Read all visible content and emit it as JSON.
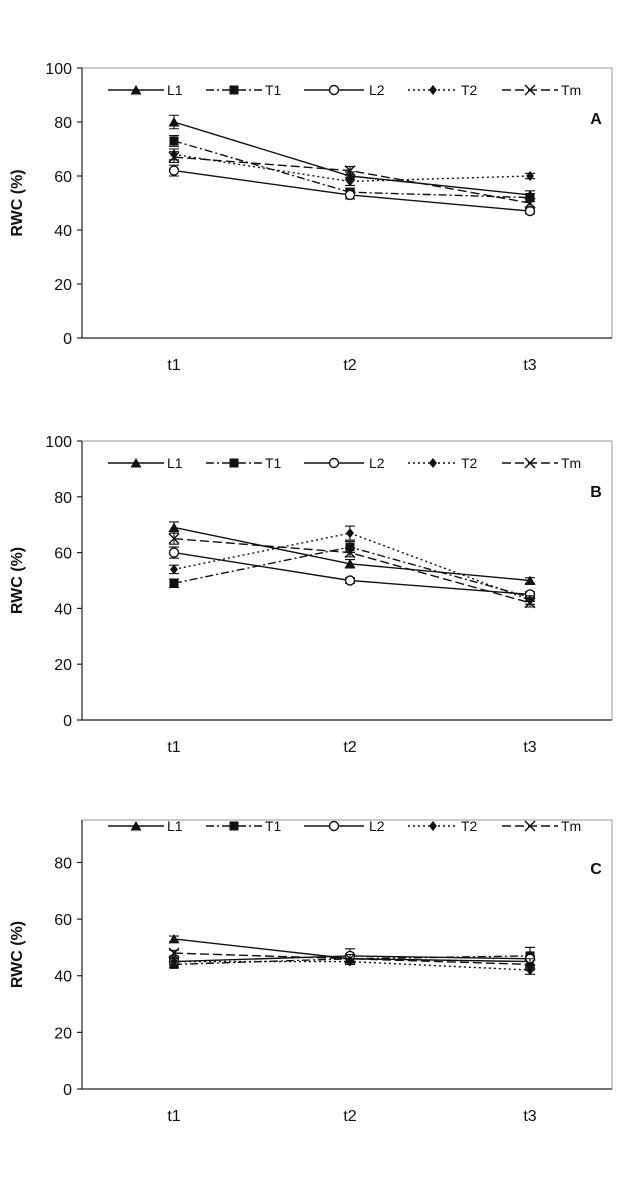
{
  "chart_data": [
    {
      "type": "line",
      "panel_label": "A",
      "ylabel": "RWC (%)",
      "ylim": [
        0,
        100
      ],
      "yticks": [
        0,
        20,
        40,
        60,
        80,
        100
      ],
      "categories": [
        "t1",
        "t2",
        "t3"
      ],
      "legend_position": "top",
      "series": [
        {
          "name": "L1",
          "marker": "triangle",
          "line": "solid",
          "values": [
            80,
            60,
            53
          ],
          "error": [
            2.5,
            1.5,
            1.5
          ]
        },
        {
          "name": "T1",
          "marker": "square",
          "line": "dashdot",
          "values": [
            73,
            54,
            52
          ],
          "error": [
            2,
            1.5,
            1.5
          ]
        },
        {
          "name": "L2",
          "marker": "circle",
          "line": "solid",
          "values": [
            62,
            53,
            47
          ],
          "error": [
            2,
            1.5,
            1
          ]
        },
        {
          "name": "T2",
          "marker": "diamond",
          "line": "dotted",
          "values": [
            68,
            58,
            60
          ],
          "error": [
            2,
            1.5,
            1
          ]
        },
        {
          "name": "Tm",
          "marker": "x",
          "line": "dashed",
          "values": [
            67,
            62,
            50
          ],
          "error": [
            2,
            1.5,
            1.5
          ]
        }
      ]
    },
    {
      "type": "line",
      "panel_label": "B",
      "ylabel": "RWC (%)",
      "ylim": [
        0,
        100
      ],
      "yticks": [
        0,
        20,
        40,
        60,
        80,
        100
      ],
      "categories": [
        "t1",
        "t2",
        "t3"
      ],
      "legend_position": "top",
      "series": [
        {
          "name": "L1",
          "marker": "triangle",
          "line": "solid",
          "values": [
            69,
            56,
            50
          ],
          "error": [
            2,
            1.5,
            1
          ]
        },
        {
          "name": "T1",
          "marker": "square",
          "line": "dashdot",
          "values": [
            49,
            62,
            44
          ],
          "error": [
            1.5,
            2,
            1.5
          ]
        },
        {
          "name": "L2",
          "marker": "circle",
          "line": "solid",
          "values": [
            60,
            50,
            45
          ],
          "error": [
            2,
            1,
            1
          ]
        },
        {
          "name": "T2",
          "marker": "diamond",
          "line": "dotted",
          "values": [
            54,
            67,
            43
          ],
          "error": [
            1.5,
            2.5,
            1.5
          ]
        },
        {
          "name": "Tm",
          "marker": "x",
          "line": "dashed",
          "values": [
            65,
            60,
            42
          ],
          "error": [
            2,
            1.5,
            1.5
          ]
        }
      ]
    },
    {
      "type": "line",
      "panel_label": "C",
      "ylabel": "RWC (%)",
      "ylim": [
        0,
        95
      ],
      "yticks": [
        0,
        20,
        40,
        60,
        80
      ],
      "categories": [
        "t1",
        "t2",
        "t3"
      ],
      "legend_position": "top",
      "series": [
        {
          "name": "L1",
          "marker": "triangle",
          "line": "solid",
          "values": [
            53,
            46,
            45
          ],
          "error": [
            1,
            1.5,
            2
          ]
        },
        {
          "name": "T1",
          "marker": "square",
          "line": "dashdot",
          "values": [
            44,
            46,
            47
          ],
          "error": [
            1,
            1.5,
            3
          ]
        },
        {
          "name": "L2",
          "marker": "circle",
          "line": "solid",
          "values": [
            45,
            47,
            46
          ],
          "error": [
            1,
            2.5,
            4
          ]
        },
        {
          "name": "T2",
          "marker": "diamond",
          "line": "dotted",
          "values": [
            45,
            45,
            42
          ],
          "error": [
            1,
            1,
            1.5
          ]
        },
        {
          "name": "Tm",
          "marker": "x",
          "line": "dashed",
          "values": [
            48,
            46,
            44
          ],
          "error": [
            1,
            1.5,
            2
          ]
        }
      ]
    }
  ]
}
